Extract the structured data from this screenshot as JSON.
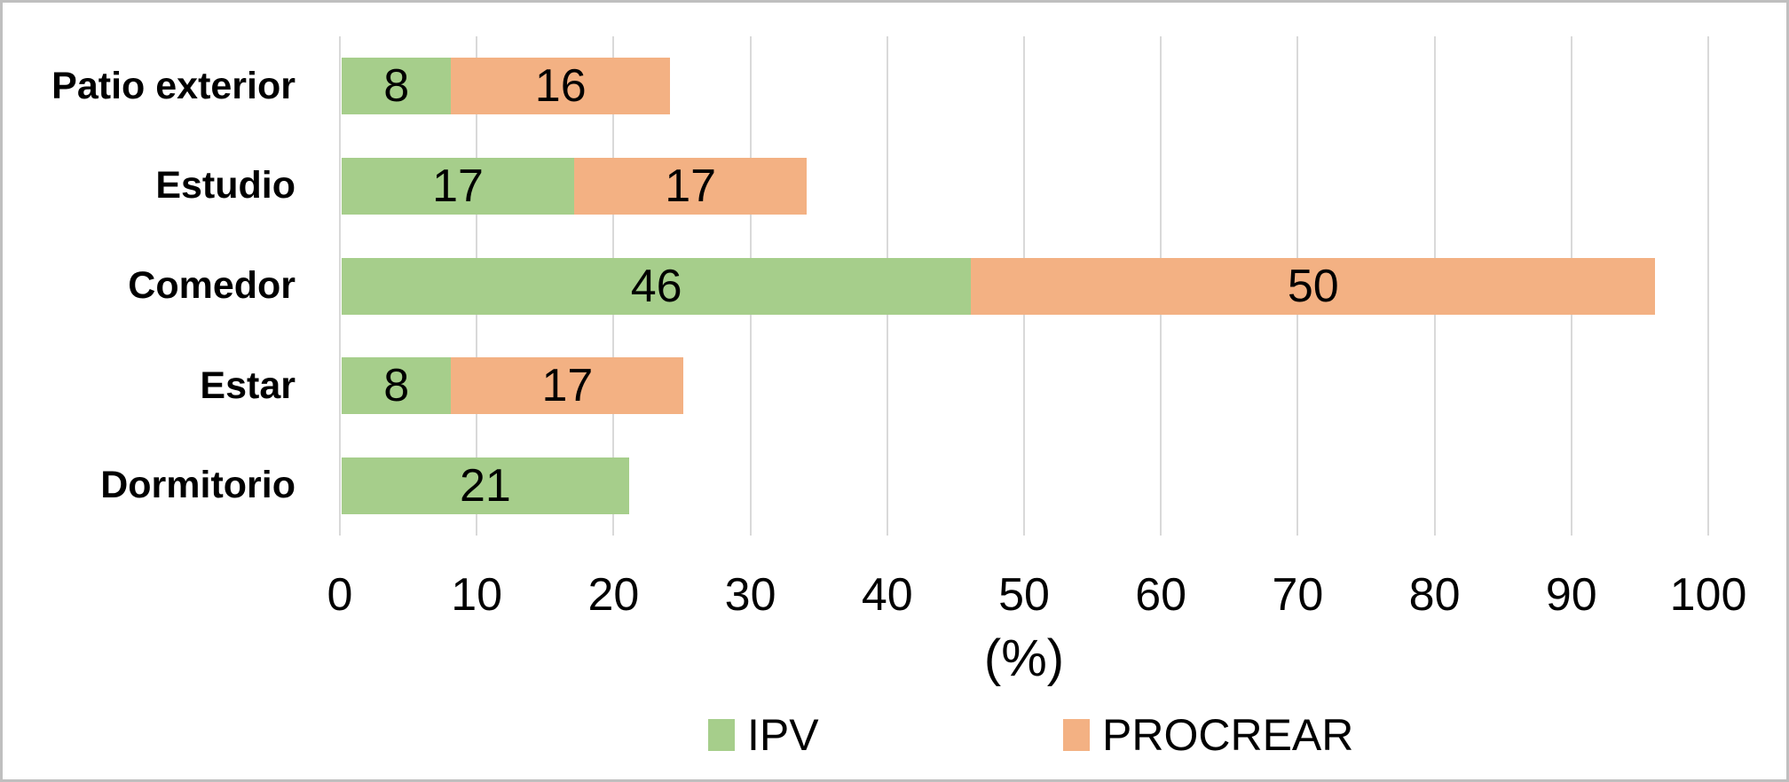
{
  "chart_data": {
    "type": "bar",
    "orientation": "horizontal",
    "stacked": true,
    "categories": [
      "Patio exterior",
      "Estudio",
      "Comedor",
      "Estar",
      "Dormitorio"
    ],
    "series": [
      {
        "name": "IPV",
        "color": "#A6CE8B",
        "values": [
          8,
          17,
          46,
          8,
          21
        ]
      },
      {
        "name": "PROCREAR",
        "color": "#F3B183",
        "values": [
          16,
          17,
          50,
          17,
          0
        ]
      }
    ],
    "xlabel": "(%)",
    "x_ticks": [
      0,
      10,
      20,
      30,
      40,
      50,
      60,
      70,
      80,
      90,
      100
    ],
    "xlim": [
      0,
      100
    ],
    "grid": true,
    "gridline_color": "#D9D9D9",
    "frame_border_color": "#BFBFBF",
    "data_labels": "inside-center",
    "legend_position": "bottom"
  }
}
